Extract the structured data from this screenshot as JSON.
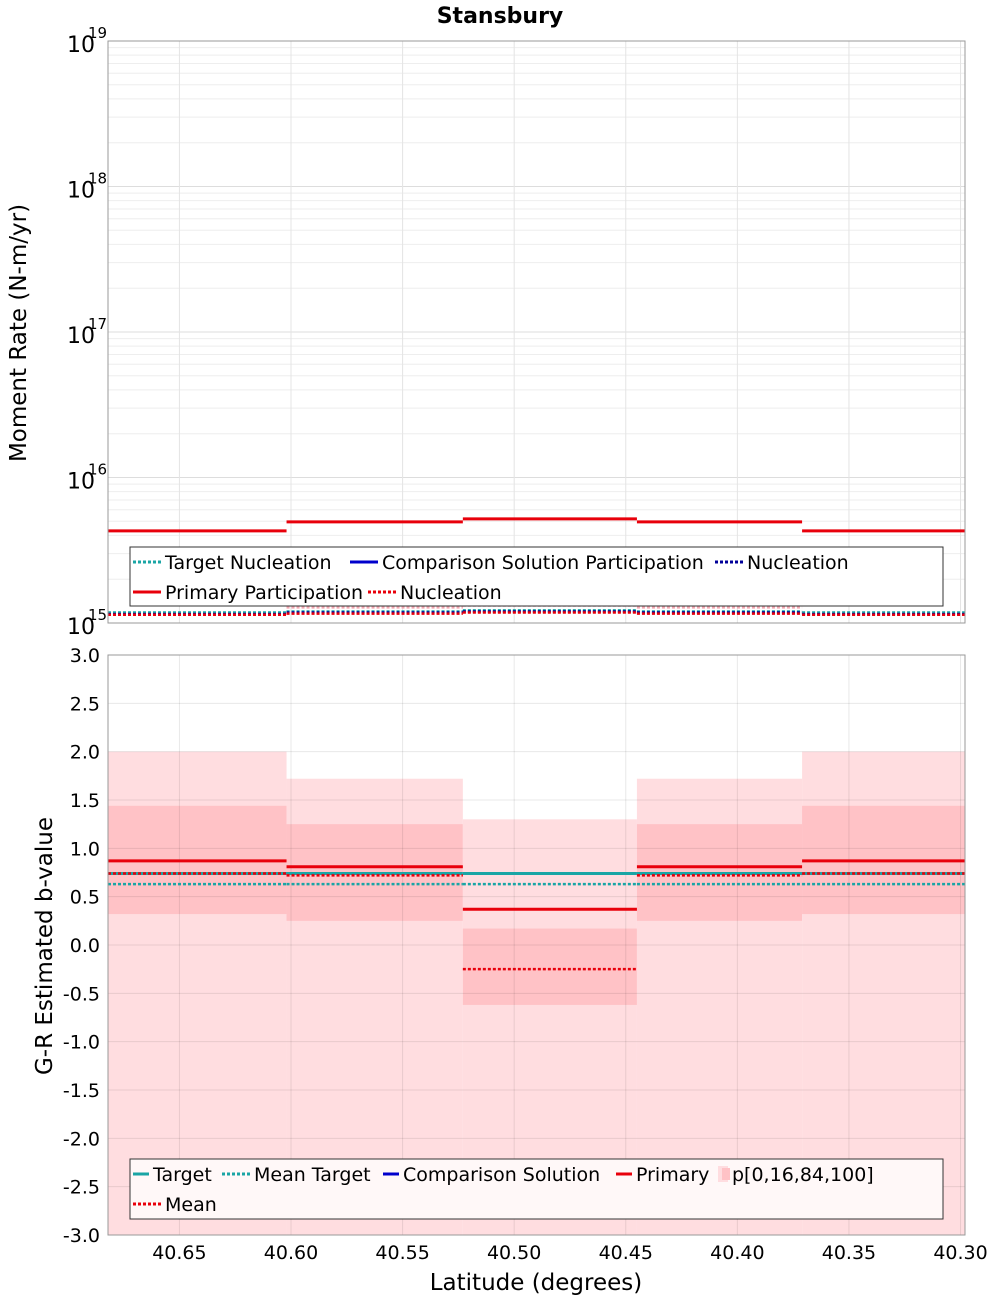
{
  "chart_data": [
    {
      "type": "line",
      "title": "Stansbury",
      "ylabel": "Moment Rate (N-m/yr)",
      "xlabel": "",
      "y_scale": "log",
      "ylim": [
        1000000000000000.0,
        1e+19
      ],
      "xlim": [
        40.682,
        40.298
      ],
      "x_reversed": true,
      "yticks": [
        {
          "base": "10",
          "exp": "15",
          "value": 1000000000000000.0
        },
        {
          "base": "10",
          "exp": "16",
          "value": 1e+16
        },
        {
          "base": "10",
          "exp": "17",
          "value": 1e+17
        },
        {
          "base": "10",
          "exp": "18",
          "value": 1e+18
        },
        {
          "base": "10",
          "exp": "19",
          "value": 1e+19
        }
      ],
      "grid": true,
      "legend_position": "bottom",
      "segment_bounds": [
        40.682,
        40.602,
        40.523,
        40.445,
        40.371,
        40.298
      ],
      "series": [
        {
          "name": "Target Nucleation",
          "color": "#1aa5a5",
          "dash": "dotted",
          "values": [
            1180000000000000.0,
            1200000000000000.0,
            1220000000000000.0,
            1200000000000000.0,
            1180000000000000.0
          ]
        },
        {
          "name": "Comparison Solution Participation",
          "color": "#0000cc",
          "dash": "solid",
          "values": []
        },
        {
          "name": "Nucleation",
          "color": "#000099",
          "dash": "dotted",
          "values": [
            1150000000000000.0,
            1180000000000000.0,
            1200000000000000.0,
            1180000000000000.0,
            1150000000000000.0
          ]
        },
        {
          "name": "Primary Participation",
          "color": "#e8000b",
          "dash": "solid",
          "values": [
            4300000000000000.0,
            4950000000000000.0,
            5200000000000000.0,
            4950000000000000.0,
            4300000000000000.0
          ]
        },
        {
          "name": "Nucleation",
          "color": "#e8000b",
          "dash": "dotted",
          "values": [
            1140000000000000.0,
            1160000000000000.0,
            1180000000000000.0,
            1160000000000000.0,
            1140000000000000.0
          ]
        }
      ],
      "extra_series": [
        {
          "color": "#f4a6b0",
          "dash": "dotted",
          "values": [
            1150000000000000.0,
            1280000000000000.0,
            1320000000000000.0,
            1280000000000000.0,
            1150000000000000.0
          ]
        }
      ]
    },
    {
      "type": "line",
      "title": "",
      "ylabel": "G-R Estimated b-value",
      "xlabel": "Latitude (degrees)",
      "ylim": [
        -3.0,
        3.0
      ],
      "xlim": [
        40.682,
        40.298
      ],
      "x_reversed": true,
      "yticks": [
        "3.0",
        "2.5",
        "2.0",
        "1.5",
        "1.0",
        "0.5",
        "0.0",
        "-0.5",
        "-1.0",
        "-1.5",
        "-2.0",
        "-2.5",
        "-3.0"
      ],
      "xticks": [
        "40.65",
        "40.60",
        "40.55",
        "40.50",
        "40.45",
        "40.40",
        "40.35",
        "40.30"
      ],
      "grid": true,
      "legend_position": "bottom",
      "segment_bounds": [
        40.682,
        40.602,
        40.523,
        40.445,
        40.371,
        40.298
      ],
      "series": [
        {
          "name": "Target",
          "color": "#1aa5a5",
          "dash": "solid",
          "values": [
            0.74,
            0.74,
            0.74,
            0.74,
            0.74
          ]
        },
        {
          "name": "Mean Target",
          "color": "#1aa5a5",
          "dash": "dotted",
          "values": [
            0.63,
            0.63,
            0.63,
            0.63,
            0.63
          ]
        },
        {
          "name": "Comparison Solution",
          "color": "#0000cc",
          "dash": "solid",
          "values": []
        },
        {
          "name": "Primary",
          "color": "#e8000b",
          "dash": "solid",
          "values": [
            0.87,
            0.81,
            0.37,
            0.81,
            0.87
          ]
        },
        {
          "name": "Mean",
          "color": "#e8000b",
          "dash": "dotted",
          "values": [
            0.74,
            0.72,
            -0.25,
            0.72,
            0.74
          ]
        }
      ],
      "bands": {
        "name": "p[0,16,84,100]",
        "outer_color": "#ffdde0",
        "inner_color": "#ffc2c6",
        "p0": [
          -3.0,
          -3.0,
          -3.0,
          -3.0,
          -3.0
        ],
        "p16": [
          0.32,
          0.25,
          -0.62,
          0.25,
          0.32
        ],
        "p84": [
          1.44,
          1.25,
          0.17,
          1.25,
          1.44
        ],
        "p100": [
          2.0,
          1.72,
          1.3,
          1.72,
          2.0
        ]
      }
    }
  ]
}
